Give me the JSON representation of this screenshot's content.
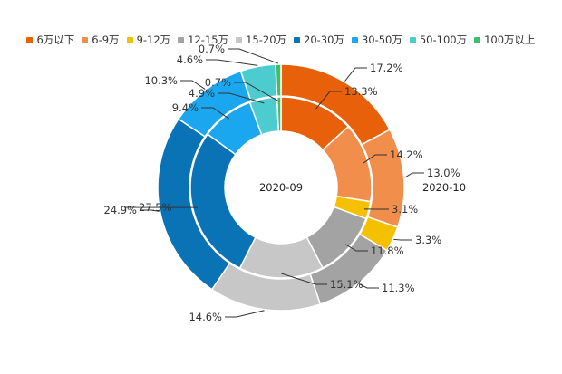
{
  "chart_data": {
    "type": "pie",
    "variant": "nested-donut",
    "categories": [
      "6万以下",
      "6-9万",
      "9-12万",
      "12-15万",
      "15-20万",
      "20-30万",
      "30-50万",
      "50-100万",
      "100万以上"
    ],
    "colors": [
      "#e8600a",
      "#f28e4b",
      "#f5c000",
      "#a3a3a3",
      "#c7c7c7",
      "#0a73b5",
      "#1aa7f0",
      "#4dccd0",
      "#3dbf6a"
    ],
    "legend_position": "top",
    "series": [
      {
        "name": "2020-09",
        "ring": "inner",
        "values": [
          13.3,
          14.2,
          3.1,
          11.8,
          15.1,
          27.5,
          9.4,
          4.9,
          0.7
        ],
        "labels": [
          "13.3%",
          "14.2%",
          "3.1%",
          "11.8%",
          "15.1%",
          "27.5%",
          "9.4%",
          "4.9%",
          "0.7%"
        ]
      },
      {
        "name": "2020-10",
        "ring": "outer",
        "values": [
          17.2,
          13.0,
          3.3,
          11.3,
          14.6,
          24.9,
          10.3,
          4.6,
          0.7
        ],
        "labels": [
          "17.2%",
          "13.0%",
          "3.3%",
          "11.3%",
          "14.6%",
          "24.9%",
          "10.3%",
          "4.6%",
          "0.7%"
        ]
      }
    ]
  }
}
